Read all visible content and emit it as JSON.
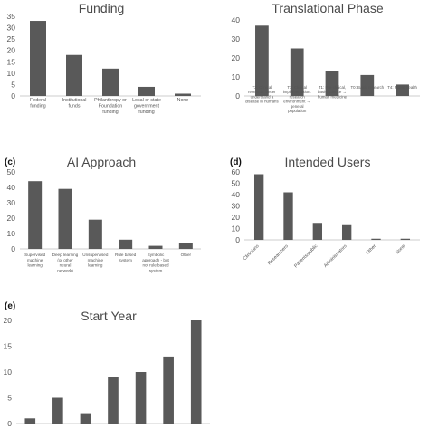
{
  "chart_data": [
    {
      "panel": "",
      "type": "bar",
      "title": "Funding",
      "categories": [
        "Federal\nfunding",
        "Institutional\nfunds",
        "Philanthropy or\nFoundation\nfunding",
        "Local or state\ngovernment\nfunding",
        "None"
      ],
      "values": [
        33,
        18,
        12,
        4,
        1
      ],
      "yticks": [
        0,
        5,
        10,
        15,
        20,
        25,
        30,
        35
      ],
      "ylim": [
        0,
        35
      ],
      "bar_color": "#595959",
      "grid": false
    },
    {
      "panel": "",
      "type": "bar",
      "title": "Translational Phase",
      "categories": [
        "T2: Clinical\nresearch: better\nunderstand a\ndisease in humans",
        "T3: Clinical\nimplementation:\nresearch\nenvironment →\ngeneral\npopulation",
        "T1: Pre-clinical,\nbasic science →\nhuman medicine",
        "T0: Basic research",
        "T4: Public health"
      ],
      "values": [
        37,
        25,
        13,
        11,
        6
      ],
      "yticks": [
        0,
        10,
        20,
        30,
        40
      ],
      "ylim": [
        0,
        40
      ],
      "bar_color": "#595959",
      "grid": false
    },
    {
      "panel": "(c)",
      "type": "bar",
      "title": "AI Approach",
      "categories": [
        "Supervised\nmachine\nlearning",
        "Deep learning\n(or other\nneural\nnetwork)",
        "Unsupervised\nmachine\nlearning",
        "Rule based\nsystem",
        "Symbolic\napproach - but\nnot rule based\nsystem",
        "Other"
      ],
      "values": [
        44,
        39,
        19,
        6,
        2,
        4
      ],
      "yticks": [
        0,
        10,
        20,
        30,
        40,
        50
      ],
      "ylim": [
        0,
        50
      ],
      "bar_color": "#595959",
      "grid": false
    },
    {
      "panel": "(d)",
      "type": "bar",
      "title": "Intended Users",
      "categories": [
        "Clinicians",
        "Researchers",
        "Patients/public",
        "Administrators",
        "Other",
        "None"
      ],
      "values": [
        58,
        42,
        15,
        13,
        1,
        1
      ],
      "yticks": [
        0,
        10,
        20,
        30,
        40,
        50,
        60
      ],
      "ylim": [
        0,
        60
      ],
      "bar_color": "#595959",
      "grid": false
    },
    {
      "panel": "(e)",
      "type": "bar",
      "title": "Start Year",
      "categories": [
        "",
        "",
        "",
        "",
        "",
        "",
        ""
      ],
      "values": [
        1,
        5,
        2,
        9,
        10,
        13,
        20
      ],
      "yticks": [
        0,
        5,
        10,
        15,
        20
      ],
      "ylim": [
        0,
        20
      ],
      "bar_color": "#595959",
      "grid": false
    }
  ]
}
